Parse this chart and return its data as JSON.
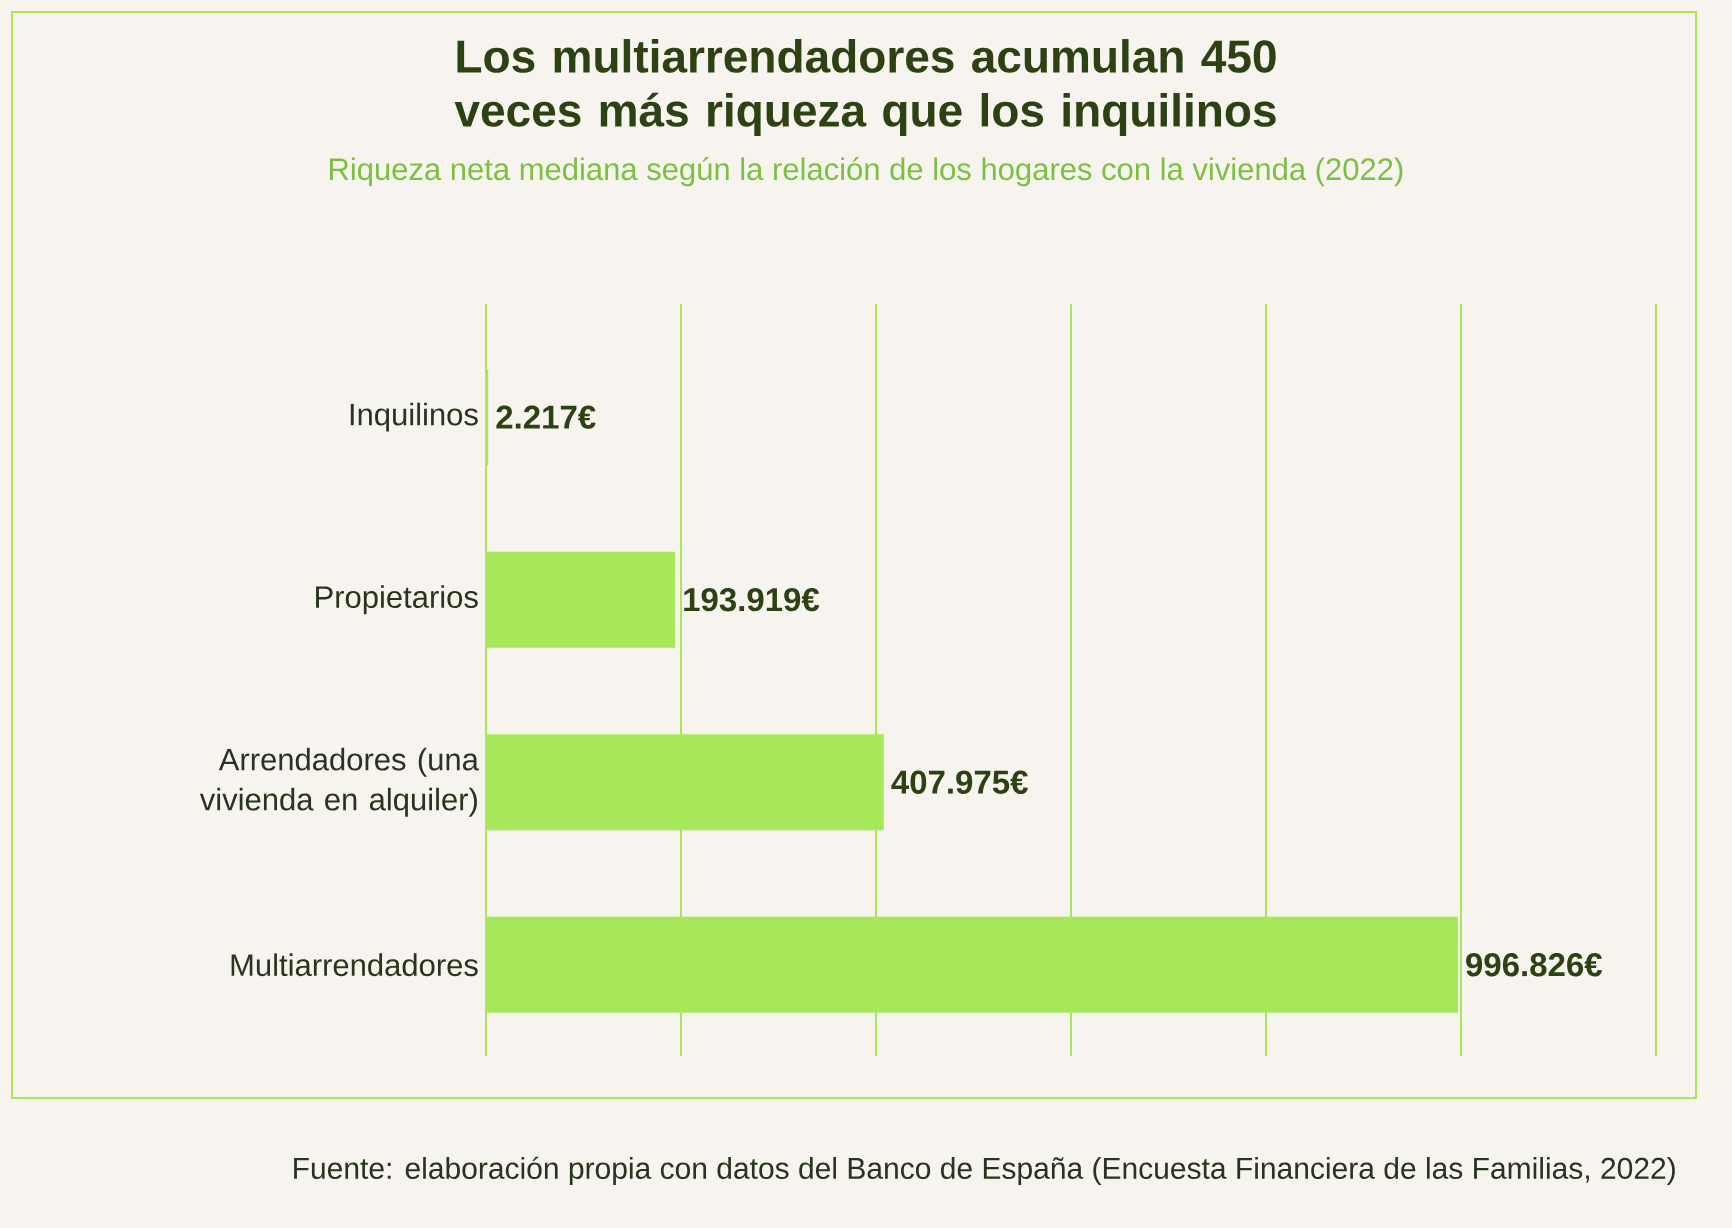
{
  "chart_data": {
    "type": "bar",
    "orientation": "horizontal",
    "title": "Los multiarrendadores acumulan 450 veces más riqueza que los inquilinos",
    "subtitle": "Riqueza neta mediana según la relación de los hogares con la vivienda (2022)",
    "categories": [
      "Inquilinos",
      "Propietarios",
      "Arrendadores (una vivienda en alquiler)",
      "Multiarrendadores"
    ],
    "values": [
      2217,
      193919,
      407975,
      996826
    ],
    "value_labels": [
      "2.217€",
      "193.919€",
      "407.975€",
      "996.826€"
    ],
    "color": "#a6e85a",
    "xlim": [
      0,
      1200000
    ],
    "xticks": [
      {
        "value": 0,
        "label": null
      },
      {
        "value": 200000,
        "label": null
      },
      {
        "value": 400000,
        "label": null
      },
      {
        "value": 600000,
        "label": null
      },
      {
        "value": 800000,
        "label": null
      },
      {
        "value": 1000000,
        "label": null
      },
      {
        "value": 1200000,
        "label": null
      }
    ],
    "grid": "x",
    "tick_labels": "y",
    "annotations": [
      "Fuente: elaboración propia con datos del Banco de España (Encuesta Financiera de las Familias, 2022)"
    ]
  }
}
